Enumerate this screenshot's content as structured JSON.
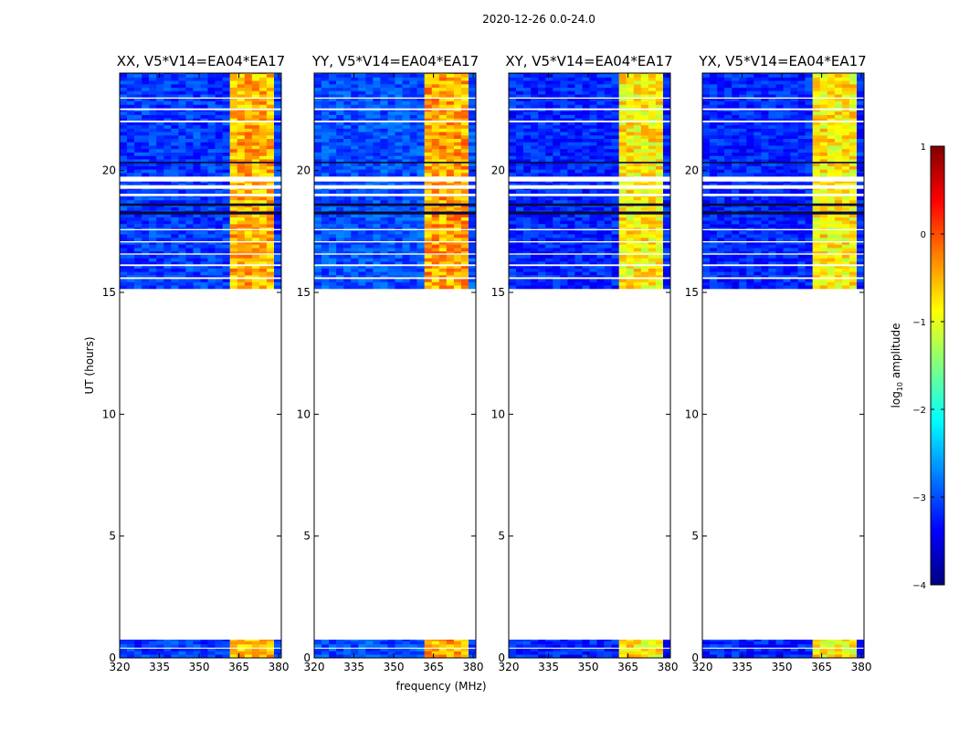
{
  "figure_title": "2020-12-26 0.0-24.0",
  "shared_ylabel": "UT (hours)",
  "shared_xlabel": "frequency (MHz)",
  "colorbar": {
    "label_prefix": "log",
    "label_sub": "10",
    "label_suffix": " amplitude",
    "min": -4,
    "max": 1,
    "ticks": [
      1,
      0,
      -1,
      -2,
      -3,
      -4
    ],
    "tick_labels": [
      "1",
      "0",
      "−1",
      "−2",
      "−3",
      "−4"
    ],
    "colormap": "jet",
    "colors": [
      "#000080",
      "#0000ff",
      "#0080ff",
      "#00ffff",
      "#80ff80",
      "#ffff00",
      "#ff8000",
      "#ff0000",
      "#800000"
    ]
  },
  "chart_data": [
    {
      "type": "heatmap",
      "panel": "XX",
      "title": "XX, V5*V14=EA04*EA17",
      "xlim": [
        320,
        381
      ],
      "ylim": [
        0,
        24
      ],
      "xticks": [
        320,
        335,
        350,
        365,
        380
      ],
      "yticks": [
        0,
        5,
        10,
        15,
        20
      ],
      "observed_time_ranges_hours": [
        [
          0.0,
          0.75
        ],
        [
          15.15,
          24.0
        ]
      ],
      "band_360_380_MHz_level": -0.6,
      "background_level": -3.1
    },
    {
      "type": "heatmap",
      "panel": "YY",
      "title": "YY, V5*V14=EA04*EA17",
      "xlim": [
        320,
        381
      ],
      "ylim": [
        0,
        24
      ],
      "xticks": [
        320,
        335,
        350,
        365,
        380
      ],
      "yticks": [
        0,
        5,
        10,
        15,
        20
      ],
      "observed_time_ranges_hours": [
        [
          0.0,
          0.75
        ],
        [
          15.15,
          24.0
        ]
      ],
      "band_360_380_MHz_level": -0.5,
      "background_level": -3.0
    },
    {
      "type": "heatmap",
      "panel": "XY",
      "title": "XY, V5*V14=EA04*EA17",
      "xlim": [
        320,
        381
      ],
      "ylim": [
        0,
        24
      ],
      "xticks": [
        320,
        335,
        350,
        365,
        380
      ],
      "yticks": [
        0,
        5,
        10,
        15,
        20
      ],
      "observed_time_ranges_hours": [
        [
          0.0,
          0.75
        ],
        [
          15.15,
          24.0
        ]
      ],
      "band_360_380_MHz_level": -0.9,
      "background_level": -3.2
    },
    {
      "type": "heatmap",
      "panel": "YX",
      "title": "YX, V5*V14=EA04*EA17",
      "xlim": [
        320,
        381
      ],
      "ylim": [
        0,
        24
      ],
      "xticks": [
        320,
        335,
        350,
        365,
        380
      ],
      "yticks": [
        0,
        5,
        10,
        15,
        20
      ],
      "observed_time_ranges_hours": [
        [
          0.0,
          0.75
        ],
        [
          15.15,
          24.0
        ]
      ],
      "band_360_380_MHz_level": -0.9,
      "background_level": -3.2
    }
  ]
}
